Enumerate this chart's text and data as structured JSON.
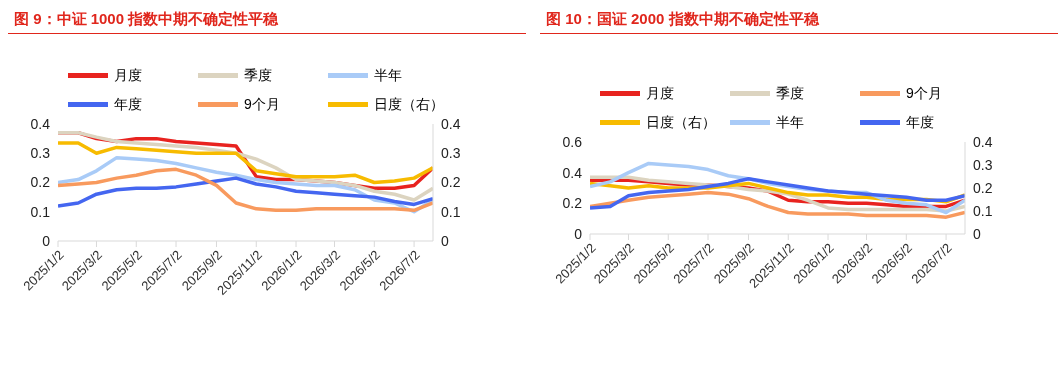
{
  "chart_data": [
    {
      "type": "line",
      "title": "图 9：中证 1000 指数中期不确定性平稳",
      "legend": "top",
      "x": [
        "2025-01-02",
        "2025-02-02",
        "2025-03-02",
        "2025-04-02",
        "2025-05-02",
        "2025-06-02",
        "2025-07-02",
        "2025-08-02",
        "2025-09-02",
        "2025-10-02",
        "2025-11-02",
        "2025-12-02",
        "2026-01-02",
        "2026-02-02",
        "2026-03-02",
        "2026-04-02",
        "2026-05-02",
        "2026-06-02",
        "2026-07-02",
        "2026-07-31"
      ],
      "xlim": [
        "2025-01-02",
        "2026-07-31"
      ],
      "xticks": [
        {
          "value": "2025-01-02",
          "label": "2025/1/2"
        },
        {
          "value": "2025-03-02",
          "label": "2025/3/2"
        },
        {
          "value": "2025-05-02",
          "label": "2025/5/2"
        },
        {
          "value": "2025-07-02",
          "label": "2025/7/2"
        },
        {
          "value": "2025-09-02",
          "label": "2025/9/2"
        },
        {
          "value": "2025-11-02",
          "label": "2025/11/2"
        },
        {
          "value": "2026-01-02",
          "label": "2026/1/2"
        },
        {
          "value": "2026-03-02",
          "label": "2026/3/2"
        },
        {
          "value": "2026-05-02",
          "label": "2026/5/2"
        },
        {
          "value": "2026-07-02",
          "label": "2026/7/2"
        }
      ],
      "ylim": [
        0,
        0.4
      ],
      "yticks": [
        0,
        0.1,
        0.2,
        0.3,
        0.4
      ],
      "y2lim": [
        0,
        0.4
      ],
      "y2ticks": [
        0,
        0.1,
        0.2,
        0.3,
        0.4
      ],
      "series": [
        {
          "name": "月度",
          "color": "#e8231f",
          "values": [
            0.37,
            0.37,
            0.35,
            0.34,
            0.35,
            0.35,
            0.34,
            0.335,
            0.33,
            0.325,
            0.22,
            0.21,
            0.21,
            0.205,
            0.2,
            0.19,
            0.18,
            0.18,
            0.19,
            0.25
          ]
        },
        {
          "name": "季度",
          "color": "#dcd4c0",
          "values": [
            0.37,
            0.37,
            0.355,
            0.34,
            0.335,
            0.33,
            0.325,
            0.32,
            0.31,
            0.3,
            0.28,
            0.25,
            0.21,
            0.205,
            0.2,
            0.19,
            0.17,
            0.16,
            0.14,
            0.18
          ]
        },
        {
          "name": "半年",
          "color": "#a9cbf7",
          "values": [
            0.2,
            0.21,
            0.24,
            0.285,
            0.28,
            0.275,
            0.265,
            0.25,
            0.235,
            0.225,
            0.21,
            0.2,
            0.195,
            0.19,
            0.19,
            0.175,
            0.14,
            0.13,
            0.1,
            0.14
          ]
        },
        {
          "name": "年度",
          "color": "#4466f0",
          "values": [
            0.12,
            0.13,
            0.16,
            0.175,
            0.18,
            0.18,
            0.185,
            0.195,
            0.205,
            0.215,
            0.195,
            0.185,
            0.17,
            0.165,
            0.16,
            0.155,
            0.15,
            0.135,
            0.125,
            0.145
          ]
        },
        {
          "name": "9个月",
          "color": "#f89a5e",
          "values": [
            0.19,
            0.195,
            0.2,
            0.215,
            0.225,
            0.24,
            0.245,
            0.225,
            0.19,
            0.13,
            0.11,
            0.105,
            0.105,
            0.11,
            0.11,
            0.11,
            0.11,
            0.11,
            0.105,
            0.13
          ]
        },
        {
          "name": "日度（右）",
          "color": "#f7bb00",
          "axis": "y2",
          "values": [
            0.335,
            0.335,
            0.3,
            0.32,
            0.315,
            0.31,
            0.305,
            0.3,
            0.3,
            0.3,
            0.24,
            0.23,
            0.22,
            0.22,
            0.22,
            0.225,
            0.2,
            0.205,
            0.215,
            0.25
          ]
        }
      ]
    },
    {
      "type": "line",
      "title": "图 10：国证 2000 指数中期不确定性平稳",
      "legend": "top",
      "x": [
        "2025-01-02",
        "2025-02-02",
        "2025-03-02",
        "2025-04-02",
        "2025-05-02",
        "2025-06-02",
        "2025-07-02",
        "2025-08-02",
        "2025-09-02",
        "2025-10-02",
        "2025-11-02",
        "2025-12-02",
        "2026-01-02",
        "2026-02-02",
        "2026-03-02",
        "2026-04-02",
        "2026-05-02",
        "2026-06-02",
        "2026-07-02",
        "2026-07-31"
      ],
      "xlim": [
        "2025-01-02",
        "2026-07-31"
      ],
      "xticks": [
        {
          "value": "2025-01-02",
          "label": "2025/1/2"
        },
        {
          "value": "2025-03-02",
          "label": "2025/3/2"
        },
        {
          "value": "2025-05-02",
          "label": "2025/5/2"
        },
        {
          "value": "2025-07-02",
          "label": "2025/7/2"
        },
        {
          "value": "2025-09-02",
          "label": "2025/9/2"
        },
        {
          "value": "2025-11-02",
          "label": "2025/11/2"
        },
        {
          "value": "2026-01-02",
          "label": "2026/1/2"
        },
        {
          "value": "2026-03-02",
          "label": "2026/3/2"
        },
        {
          "value": "2026-05-02",
          "label": "2026/5/2"
        },
        {
          "value": "2026-07-02",
          "label": "2026/7/2"
        }
      ],
      "ylim": [
        0,
        0.6
      ],
      "yticks": [
        0,
        0.2,
        0.4,
        0.6
      ],
      "y2lim": [
        0,
        0.4
      ],
      "y2ticks": [
        0,
        0.1,
        0.2,
        0.3,
        0.4
      ],
      "series": [
        {
          "name": "月度",
          "color": "#e8231f",
          "values": [
            0.35,
            0.35,
            0.35,
            0.34,
            0.33,
            0.32,
            0.32,
            0.31,
            0.3,
            0.28,
            0.22,
            0.21,
            0.21,
            0.2,
            0.2,
            0.19,
            0.18,
            0.18,
            0.18,
            0.22
          ]
        },
        {
          "name": "季度",
          "color": "#dcd4c0",
          "values": [
            0.37,
            0.37,
            0.37,
            0.35,
            0.34,
            0.33,
            0.32,
            0.31,
            0.29,
            0.28,
            0.26,
            0.22,
            0.17,
            0.16,
            0.16,
            0.16,
            0.16,
            0.16,
            0.15,
            0.18
          ]
        },
        {
          "name": "9个月",
          "color": "#f89a5e",
          "values": [
            0.18,
            0.2,
            0.22,
            0.24,
            0.25,
            0.26,
            0.27,
            0.26,
            0.23,
            0.18,
            0.14,
            0.13,
            0.13,
            0.13,
            0.12,
            0.12,
            0.12,
            0.12,
            0.11,
            0.14
          ]
        },
        {
          "name": "日度（右）",
          "color": "#f7bb00",
          "axis": "y2",
          "values": [
            0.22,
            0.21,
            0.2,
            0.21,
            0.2,
            0.2,
            0.2,
            0.21,
            0.22,
            0.2,
            0.18,
            0.17,
            0.17,
            0.16,
            0.16,
            0.15,
            0.15,
            0.15,
            0.14,
            0.17
          ]
        },
        {
          "name": "半年",
          "color": "#a9cbf7",
          "values": [
            0.31,
            0.34,
            0.4,
            0.46,
            0.45,
            0.44,
            0.42,
            0.38,
            0.36,
            0.33,
            0.31,
            0.29,
            0.28,
            0.27,
            0.27,
            0.22,
            0.2,
            0.19,
            0.14,
            0.22
          ]
        },
        {
          "name": "年度",
          "color": "#4466f0",
          "values": [
            0.17,
            0.18,
            0.25,
            0.27,
            0.28,
            0.29,
            0.31,
            0.33,
            0.36,
            0.34,
            0.32,
            0.3,
            0.28,
            0.27,
            0.26,
            0.25,
            0.24,
            0.22,
            0.22,
            0.25
          ]
        }
      ]
    }
  ]
}
